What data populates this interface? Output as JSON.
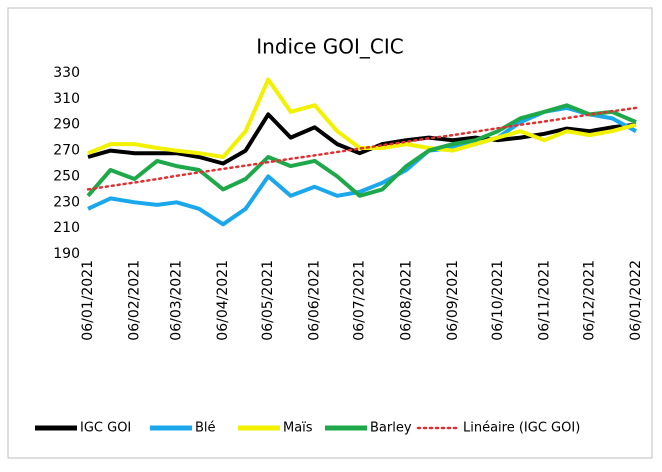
{
  "chart_data": {
    "type": "line",
    "title": "Indice GOI_CIC",
    "x": [
      "06/01/2021",
      "21/01/2021",
      "06/02/2021",
      "21/02/2021",
      "06/03/2021",
      "21/03/2021",
      "06/04/2021",
      "21/04/2021",
      "06/05/2021",
      "21/05/2021",
      "06/06/2021",
      "21/06/2021",
      "06/07/2021",
      "21/07/2021",
      "06/08/2021",
      "21/08/2021",
      "06/09/2021",
      "21/09/2021",
      "06/10/2021",
      "21/10/2021",
      "06/11/2021",
      "21/11/2021",
      "06/12/2021",
      "21/12/2021",
      "06/01/2022"
    ],
    "series": [
      {
        "name": "IGC GOI",
        "color": "#000000",
        "values": [
          265,
          270,
          268,
          268,
          268,
          265,
          260,
          270,
          298,
          280,
          288,
          275,
          268,
          275,
          278,
          280,
          278,
          280,
          278,
          280,
          283,
          287,
          285,
          288,
          290
        ]
      },
      {
        "name": "Blé",
        "color": "#1aa7ec",
        "values": [
          225,
          233,
          230,
          228,
          230,
          225,
          213,
          225,
          250,
          235,
          242,
          235,
          238,
          245,
          255,
          270,
          272,
          275,
          280,
          292,
          300,
          303,
          298,
          295,
          285
        ]
      },
      {
        "name": "Maïs",
        "color": "#f2f200",
        "values": [
          268,
          275,
          275,
          272,
          270,
          268,
          265,
          285,
          325,
          300,
          305,
          285,
          272,
          272,
          275,
          272,
          270,
          275,
          280,
          285,
          278,
          285,
          282,
          285,
          290
        ]
      },
      {
        "name": "Barley",
        "color": "#1fa84a",
        "values": [
          235,
          255,
          248,
          262,
          258,
          255,
          240,
          248,
          265,
          258,
          262,
          250,
          235,
          240,
          258,
          270,
          275,
          278,
          285,
          295,
          300,
          305,
          298,
          300,
          292
        ]
      },
      {
        "name": "Linéaire (IGC GOI)",
        "color": "#e03030",
        "dotted": true,
        "values": [
          240,
          242.6,
          245.3,
          247.9,
          250.5,
          253.1,
          255.8,
          258.4,
          261,
          263.6,
          266.3,
          268.9,
          271.5,
          274.1,
          276.8,
          279.4,
          282,
          284.6,
          287.3,
          289.9,
          292.5,
          295.1,
          297.8,
          300.4,
          303
        ]
      }
    ],
    "xticks": [
      "06/01/2021",
      "06/02/2021",
      "06/03/2021",
      "06/04/2021",
      "06/05/2021",
      "06/06/2021",
      "06/07/2021",
      "06/08/2021",
      "06/09/2021",
      "06/10/2021",
      "06/11/2021",
      "06/12/2021",
      "06/01/2022"
    ],
    "ylim": [
      190,
      330
    ],
    "yticks": [
      190,
      210,
      230,
      250,
      270,
      290,
      310,
      330
    ],
    "grid": false,
    "legend": "bottom"
  }
}
